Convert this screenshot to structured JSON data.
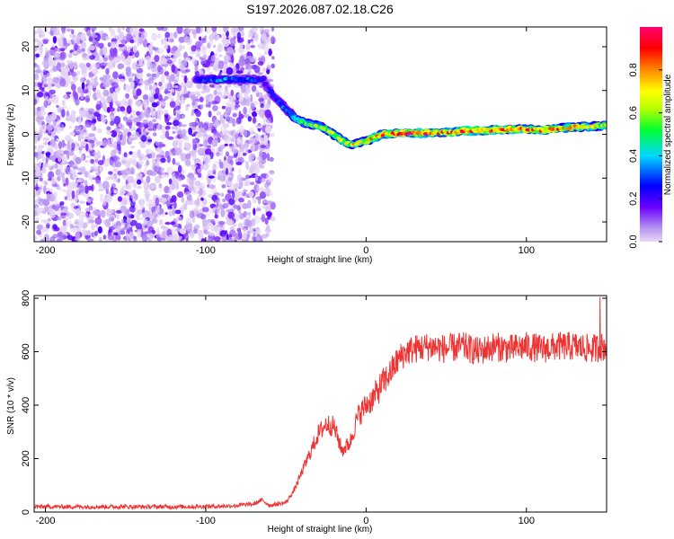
{
  "title": "S197.2026.087.02.18.C26",
  "chart_data": [
    {
      "type": "heatmap",
      "name": "spectrogram",
      "xlabel": "Height of straight line (km)",
      "ylabel": "Frequency (Hz)",
      "xlim": [
        -207,
        150
      ],
      "ylim": [
        -24.5,
        24.5
      ],
      "xticks": [
        -200,
        -100,
        0,
        100
      ],
      "yticks": [
        -20,
        -10,
        0,
        10,
        20
      ],
      "colorbar": {
        "label": "Normalized spectral amplitude",
        "range": [
          0.0,
          1.0
        ],
        "ticks": [
          0.0,
          0.2,
          0.4,
          0.6,
          0.8
        ],
        "tick_labels": [
          "0.0",
          "0.2",
          "0.4",
          "0.6",
          "0.8"
        ],
        "colors": [
          "#e0c8f0",
          "#8000ff",
          "#0000ff",
          "#00d0ff",
          "#00ff40",
          "#c0ff00",
          "#ffff00",
          "#ff8000",
          "#ff0000",
          "#ff00c0"
        ]
      },
      "noise_region_x": [
        -207,
        -58
      ],
      "ridge": [
        {
          "x": -106,
          "y": 12.5,
          "a": 0.25
        },
        {
          "x": -95,
          "y": 12.5,
          "a": 0.3
        },
        {
          "x": -85,
          "y": 12.5,
          "a": 0.35
        },
        {
          "x": -75,
          "y": 12.5,
          "a": 0.3
        },
        {
          "x": -64,
          "y": 12.5,
          "a": 0.25
        },
        {
          "x": -62,
          "y": 11,
          "a": 0.2
        },
        {
          "x": -58,
          "y": 9,
          "a": 0.25
        },
        {
          "x": -52,
          "y": 6.5,
          "a": 0.3
        },
        {
          "x": -45,
          "y": 4,
          "a": 0.4
        },
        {
          "x": -38,
          "y": 2.5,
          "a": 0.5
        },
        {
          "x": -30,
          "y": 2,
          "a": 0.55
        },
        {
          "x": -22,
          "y": 0.5,
          "a": 0.55
        },
        {
          "x": -15,
          "y": -1.5,
          "a": 0.6
        },
        {
          "x": -8,
          "y": -2.5,
          "a": 0.65
        },
        {
          "x": 0,
          "y": -1.5,
          "a": 0.7
        },
        {
          "x": 10,
          "y": 0,
          "a": 0.75
        },
        {
          "x": 20,
          "y": 0.2,
          "a": 0.85
        },
        {
          "x": 35,
          "y": 0.3,
          "a": 0.8
        },
        {
          "x": 50,
          "y": 0.5,
          "a": 0.75
        },
        {
          "x": 65,
          "y": 0.8,
          "a": 0.85
        },
        {
          "x": 80,
          "y": 1.0,
          "a": 0.8
        },
        {
          "x": 95,
          "y": 1.2,
          "a": 0.75
        },
        {
          "x": 110,
          "y": 1.0,
          "a": 0.8
        },
        {
          "x": 125,
          "y": 1.5,
          "a": 0.7
        },
        {
          "x": 140,
          "y": 1.8,
          "a": 0.65
        },
        {
          "x": 150,
          "y": 2.0,
          "a": 0.6
        }
      ]
    },
    {
      "type": "line",
      "name": "snr",
      "xlabel": "Height of straight line (km)",
      "ylabel": "SNR (10 * v/v)",
      "xlim": [
        -207,
        150
      ],
      "ylim": [
        0,
        810
      ],
      "xticks": [
        -200,
        -100,
        0,
        100
      ],
      "yticks": [
        0,
        200,
        400,
        600,
        800
      ],
      "color": "#ee3333",
      "series": [
        {
          "name": "SNR",
          "x": [
            -207,
            -190,
            -170,
            -150,
            -130,
            -110,
            -90,
            -80,
            -70,
            -65,
            -60,
            -55,
            -50,
            -45,
            -40,
            -35,
            -30,
            -25,
            -20,
            -15,
            -10,
            -5,
            0,
            5,
            10,
            15,
            20,
            25,
            30,
            40,
            50,
            60,
            70,
            80,
            90,
            100,
            110,
            120,
            130,
            140,
            150
          ],
          "y": [
            20,
            20,
            20,
            20,
            20,
            20,
            22,
            25,
            30,
            45,
            25,
            30,
            35,
            80,
            150,
            220,
            290,
            330,
            320,
            230,
            260,
            360,
            400,
            430,
            480,
            520,
            570,
            600,
            610,
            620,
            610,
            620,
            600,
            620,
            610,
            620,
            610,
            620,
            620,
            610,
            620
          ]
        }
      ],
      "noise_amplitude_low": 8,
      "noise_amplitude_high": 55,
      "max_spike": {
        "x": 146,
        "y": 805
      }
    }
  ]
}
